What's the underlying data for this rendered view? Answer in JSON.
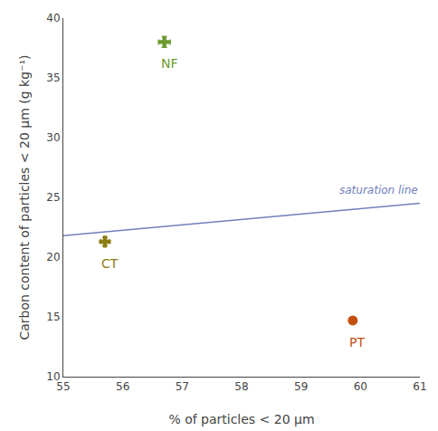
{
  "chart_data": {
    "type": "scatter",
    "xlabel": "% of particles < 20 μm",
    "ylabel": "Carbon content of particles < 20 μm (g kg⁻¹)",
    "xlim": [
      55,
      61
    ],
    "ylim": [
      10,
      40
    ],
    "xticks": [
      55,
      56,
      57,
      58,
      59,
      60,
      61
    ],
    "yticks": [
      10,
      15,
      20,
      25,
      30,
      35,
      40
    ],
    "grid": false,
    "series": [
      {
        "name": "NF",
        "x": [
          56.7
        ],
        "values": [
          38.0
        ],
        "xerr": [
          0.1
        ],
        "yerr": [
          0.45
        ],
        "color": "#6b9a2f",
        "marker": "plus"
      },
      {
        "name": "CT",
        "x": [
          55.7
        ],
        "values": [
          21.3
        ],
        "xerr": [
          0.07
        ],
        "yerr": [
          0.35
        ],
        "color": "#8b7d10",
        "marker": "plus"
      },
      {
        "name": "PT",
        "x": [
          59.87
        ],
        "values": [
          14.7
        ],
        "xerr": [
          0.05
        ],
        "yerr": [
          0.25
        ],
        "color": "#c45010",
        "marker": "circle"
      },
      {
        "name": "saturation line",
        "type": "line",
        "x": [
          55,
          61
        ],
        "values": [
          21.8,
          24.5
        ],
        "color": "#7080bb"
      }
    ]
  }
}
